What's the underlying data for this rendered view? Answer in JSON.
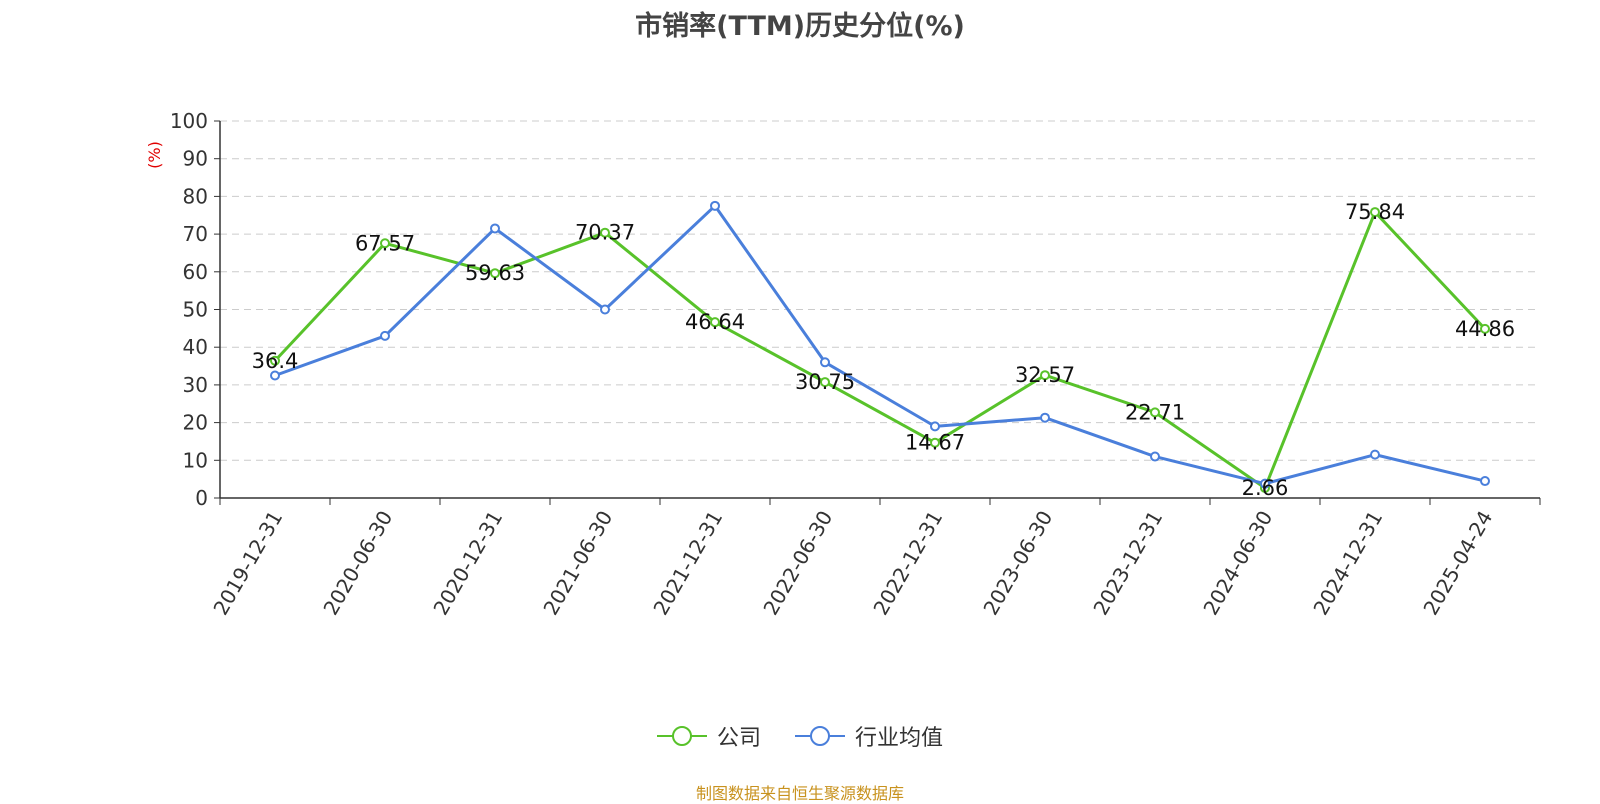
{
  "chart_data": {
    "type": "line",
    "title": "市销率(TTM)历史分位(%)",
    "ylabel": "(%)",
    "ylim": [
      0,
      100
    ],
    "yticks": [
      0,
      10,
      20,
      30,
      40,
      50,
      60,
      70,
      80,
      90,
      100
    ],
    "grid": true,
    "legend_position": "bottom",
    "categories": [
      "2019-12-31",
      "2020-06-30",
      "2020-12-31",
      "2021-06-30",
      "2021-12-31",
      "2022-06-30",
      "2022-12-31",
      "2023-06-30",
      "2023-12-31",
      "2024-06-30",
      "2024-12-31",
      "2025-04-24"
    ],
    "series": [
      {
        "name": "公司",
        "color": "#58c22a",
        "show_labels": true,
        "values": [
          36.4,
          67.57,
          59.63,
          70.37,
          46.64,
          30.75,
          14.67,
          32.57,
          22.71,
          2.66,
          75.84,
          44.86
        ]
      },
      {
        "name": "行业均值",
        "color": "#4a7fdb",
        "show_labels": false,
        "values": [
          32.5,
          43.0,
          71.5,
          50.0,
          77.5,
          36.0,
          19.0,
          21.3,
          11.0,
          3.8,
          11.5,
          4.5
        ]
      }
    ]
  },
  "footer": {
    "source": "制图数据来自恒生聚源数据库"
  }
}
